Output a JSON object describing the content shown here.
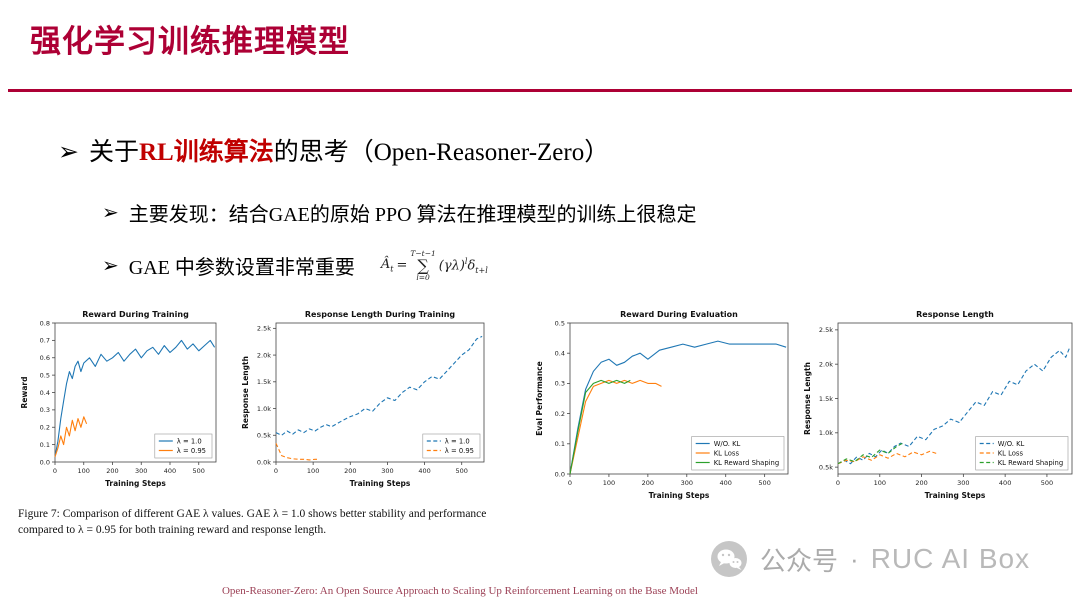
{
  "slide": {
    "title": "强化学习训练推理模型",
    "bullets": {
      "arrow": "➢",
      "main": {
        "pre": "关于",
        "highlight": "RL训练算法",
        "post": "的思考（Open-Reasoner-Zero）"
      },
      "sub1": "主要发现：结合GAE的原始 PPO 算法在推理模型的训练上很稳定",
      "sub2": "GAE 中参数设置非常重要"
    },
    "formula": {
      "lhs_symbol": "Â",
      "lhs_sub": "t",
      "equals": "=",
      "sum_upper": "T−t−1",
      "sigma": "∑",
      "sum_lower": "l=0",
      "term_base": "(γλ)",
      "term_exp": "l",
      "delta": "δ",
      "delta_sub": "t+l"
    },
    "caption": "Figure 7: Comparison of different GAE λ values.  GAE λ = 1.0 shows better stability and performance compared to λ = 0.95 for both training reward and response length.",
    "footer": "Open-Reasoner-Zero: An Open Source Approach to Scaling Up Reinforcement Learning on the Base Model",
    "watermark": {
      "label": "公众号",
      "separator": "·",
      "brand": "RUC AI Box"
    },
    "colors": {
      "accent": "#AD0035",
      "highlight": "#C00000",
      "footer": "#9C4156",
      "watermark": "#ABABAB",
      "blue": "#1f77b4",
      "orange": "#ff7f0e",
      "green": "#2ca02c"
    }
  },
  "chart_data": [
    {
      "type": "line",
      "title": "Reward During Training",
      "xlabel": "Training Steps",
      "ylabel": "Reward",
      "xlim": [
        0,
        560
      ],
      "ylim": [
        0,
        0.8
      ],
      "xticks": [
        0,
        100,
        200,
        300,
        400,
        500
      ],
      "yticks": [
        0,
        0.1,
        0.2,
        0.3,
        0.4,
        0.5,
        0.6,
        0.7,
        0.8
      ],
      "yticklabels": [
        "0.0",
        "0.1",
        "0.2",
        "0.3",
        "0.4",
        "0.5",
        "0.6",
        "0.7",
        "0.8"
      ],
      "grid": false,
      "legend_position": "lower right",
      "series": [
        {
          "name": "λ = 1.0",
          "color": "#1f77b4",
          "dash": false,
          "x": [
            0,
            10,
            20,
            30,
            40,
            50,
            60,
            70,
            80,
            90,
            100,
            120,
            140,
            160,
            180,
            200,
            220,
            240,
            260,
            280,
            300,
            320,
            340,
            360,
            380,
            400,
            420,
            440,
            460,
            480,
            500,
            520,
            540,
            555
          ],
          "y": [
            0.03,
            0.12,
            0.25,
            0.35,
            0.45,
            0.52,
            0.48,
            0.55,
            0.58,
            0.52,
            0.57,
            0.6,
            0.55,
            0.62,
            0.58,
            0.6,
            0.63,
            0.58,
            0.62,
            0.65,
            0.6,
            0.64,
            0.66,
            0.62,
            0.67,
            0.63,
            0.66,
            0.7,
            0.65,
            0.68,
            0.64,
            0.67,
            0.7,
            0.66
          ]
        },
        {
          "name": "λ = 0.95",
          "color": "#ff7f0e",
          "dash": false,
          "x": [
            0,
            10,
            20,
            30,
            40,
            50,
            60,
            70,
            80,
            90,
            100,
            110
          ],
          "y": [
            0.03,
            0.08,
            0.15,
            0.1,
            0.2,
            0.15,
            0.24,
            0.18,
            0.25,
            0.2,
            0.26,
            0.22
          ]
        }
      ]
    },
    {
      "type": "line",
      "title": "Response Length During Training",
      "xlabel": "Training Steps",
      "ylabel": "Response Length",
      "xlim": [
        0,
        560
      ],
      "ylim": [
        0,
        2.6
      ],
      "xticks": [
        0,
        100,
        200,
        300,
        400,
        500
      ],
      "yticks": [
        0,
        0.5,
        1.0,
        1.5,
        2.0,
        2.5
      ],
      "yticklabels": [
        "0.0k",
        "0.5k",
        "1.0k",
        "1.5k",
        "2.0k",
        "2.5k"
      ],
      "grid": false,
      "legend_position": "lower right",
      "series": [
        {
          "name": "λ = 1.0",
          "color": "#1f77b4",
          "dash": true,
          "x": [
            0,
            15,
            30,
            45,
            60,
            75,
            90,
            105,
            120,
            135,
            150,
            165,
            180,
            200,
            220,
            240,
            260,
            280,
            300,
            320,
            340,
            360,
            380,
            400,
            420,
            440,
            460,
            480,
            500,
            520,
            540,
            555
          ],
          "y": [
            0.55,
            0.5,
            0.58,
            0.52,
            0.6,
            0.55,
            0.62,
            0.58,
            0.65,
            0.7,
            0.66,
            0.72,
            0.78,
            0.85,
            0.9,
            1.0,
            0.95,
            1.1,
            1.2,
            1.15,
            1.3,
            1.4,
            1.35,
            1.5,
            1.6,
            1.55,
            1.7,
            1.85,
            2.0,
            2.1,
            2.3,
            2.35
          ]
        },
        {
          "name": "λ = 0.95",
          "color": "#ff7f0e",
          "dash": true,
          "x": [
            0,
            15,
            30,
            45,
            60,
            75,
            90,
            105,
            115
          ],
          "y": [
            0.35,
            0.12,
            0.08,
            0.06,
            0.05,
            0.05,
            0.04,
            0.05,
            0.05
          ]
        }
      ]
    },
    {
      "type": "line",
      "title": "Reward During Evaluation",
      "xlabel": "Training Steps",
      "ylabel": "Eval Performance",
      "xlim": [
        0,
        560
      ],
      "ylim": [
        0,
        0.5
      ],
      "xticks": [
        0,
        100,
        200,
        300,
        400,
        500
      ],
      "yticks": [
        0,
        0.1,
        0.2,
        0.3,
        0.4,
        0.5
      ],
      "yticklabels": [
        "0.0",
        "0.1",
        "0.2",
        "0.3",
        "0.4",
        "0.5"
      ],
      "grid": false,
      "legend_position": "lower right",
      "series": [
        {
          "name": "W/O. KL",
          "color": "#1f77b4",
          "dash": false,
          "x": [
            0,
            20,
            40,
            60,
            80,
            100,
            120,
            140,
            160,
            180,
            200,
            230,
            260,
            290,
            320,
            350,
            380,
            410,
            440,
            470,
            500,
            530,
            555
          ],
          "y": [
            0.0,
            0.15,
            0.28,
            0.34,
            0.37,
            0.38,
            0.36,
            0.37,
            0.39,
            0.4,
            0.38,
            0.41,
            0.42,
            0.43,
            0.42,
            0.43,
            0.44,
            0.43,
            0.43,
            0.43,
            0.43,
            0.43,
            0.42
          ]
        },
        {
          "name": "KL Loss",
          "color": "#ff7f0e",
          "dash": false,
          "x": [
            0,
            20,
            40,
            60,
            80,
            100,
            120,
            140,
            160,
            180,
            200,
            220,
            235
          ],
          "y": [
            0.0,
            0.12,
            0.24,
            0.29,
            0.3,
            0.31,
            0.3,
            0.31,
            0.3,
            0.31,
            0.3,
            0.3,
            0.29
          ]
        },
        {
          "name": "KL Reward Shaping",
          "color": "#2ca02c",
          "dash": false,
          "x": [
            0,
            20,
            40,
            60,
            80,
            100,
            120,
            140,
            155
          ],
          "y": [
            0.0,
            0.14,
            0.27,
            0.3,
            0.31,
            0.3,
            0.31,
            0.3,
            0.31
          ]
        }
      ]
    },
    {
      "type": "line",
      "title": "Response Length",
      "xlabel": "Training Steps",
      "ylabel": "Response Length",
      "xlim": [
        0,
        560
      ],
      "ylim": [
        0.4,
        2.6
      ],
      "xticks": [
        0,
        100,
        200,
        300,
        400,
        500
      ],
      "yticks": [
        0.5,
        1.0,
        1.5,
        2.0,
        2.5
      ],
      "yticklabels": [
        "0.5k",
        "1.0k",
        "1.5k",
        "2.0k",
        "2.5k"
      ],
      "grid": false,
      "legend_position": "lower right",
      "series": [
        {
          "name": "W/O. KL",
          "color": "#1f77b4",
          "dash": true,
          "x": [
            0,
            15,
            30,
            45,
            60,
            75,
            90,
            105,
            120,
            135,
            150,
            170,
            190,
            210,
            230,
            250,
            270,
            290,
            310,
            330,
            350,
            370,
            390,
            410,
            430,
            450,
            470,
            490,
            510,
            530,
            545,
            555
          ],
          "y": [
            0.55,
            0.6,
            0.55,
            0.65,
            0.6,
            0.7,
            0.65,
            0.75,
            0.7,
            0.8,
            0.85,
            0.8,
            0.95,
            0.9,
            1.05,
            1.1,
            1.2,
            1.15,
            1.3,
            1.45,
            1.4,
            1.6,
            1.55,
            1.75,
            1.7,
            1.9,
            2.0,
            1.9,
            2.1,
            2.2,
            2.1,
            2.25
          ]
        },
        {
          "name": "KL Loss",
          "color": "#ff7f0e",
          "dash": true,
          "x": [
            0,
            20,
            40,
            60,
            80,
            100,
            120,
            140,
            160,
            180,
            200,
            220,
            235
          ],
          "y": [
            0.55,
            0.6,
            0.58,
            0.65,
            0.6,
            0.68,
            0.63,
            0.7,
            0.65,
            0.72,
            0.68,
            0.73,
            0.7
          ]
        },
        {
          "name": "KL Reward Shaping",
          "color": "#2ca02c",
          "dash": true,
          "x": [
            0,
            20,
            40,
            60,
            80,
            100,
            120,
            140,
            155
          ],
          "y": [
            0.55,
            0.62,
            0.58,
            0.68,
            0.64,
            0.75,
            0.7,
            0.8,
            0.85
          ]
        }
      ]
    }
  ]
}
